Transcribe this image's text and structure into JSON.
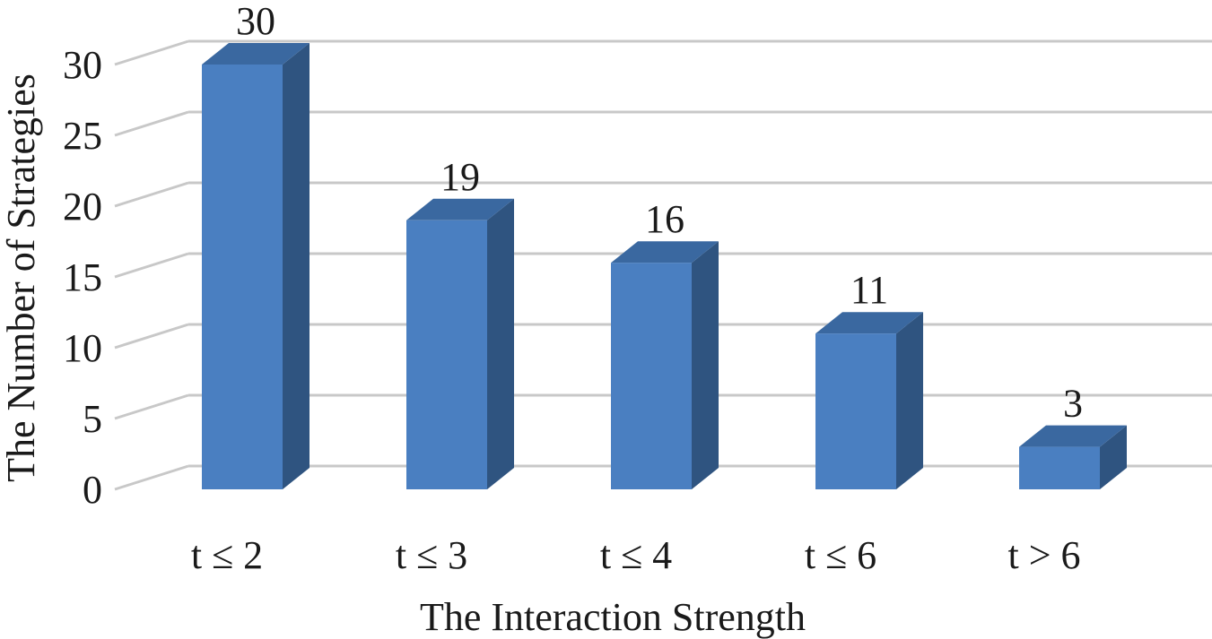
{
  "chart_data": {
    "type": "bar",
    "style": "3d-column",
    "categories": [
      "t ≤ 2",
      "t ≤ 3",
      "t ≤ 4",
      "t ≤ 6",
      "t > 6"
    ],
    "series": [
      {
        "values": [
          30,
          19,
          16,
          11,
          3
        ],
        "color": "#4a7fc1",
        "side_color": "#2f5480",
        "top_color": "#3a68a0"
      }
    ],
    "data_labels": [
      "30",
      "19",
      "16",
      "11",
      "3"
    ],
    "xlabel": "The Interaction Strength",
    "ylabel": "The Number of Strategies",
    "ylim": [
      0,
      30
    ],
    "yticks": [
      0,
      5,
      10,
      15,
      20,
      25,
      30
    ],
    "ytick_labels": [
      "0",
      "5",
      "10",
      "15",
      "20",
      "25",
      "30"
    ],
    "grid": true,
    "legend": "none",
    "gridline_color": "#c8c8c8"
  }
}
